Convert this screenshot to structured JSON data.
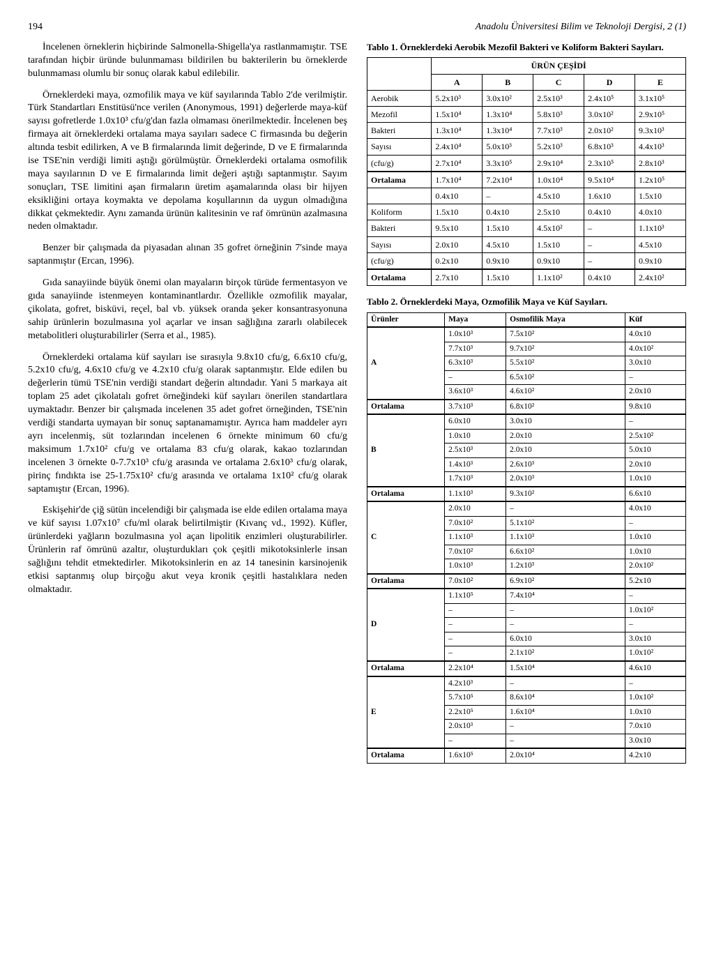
{
  "page_number": "194",
  "journal": "Anadolu Üniversitesi Bilim ve Teknoloji Dergisi, 2 (1)",
  "paragraphs": {
    "p1": "İncelenen örneklerin hiçbirinde Salmonella-Shigella'ya rastlanmamıştır. TSE tarafından hiçbir üründe bulunmaması bildirilen bu bakterilerin bu örneklerde bulunmaması olumlu bir sonuç olarak kabul edilebilir.",
    "p2": "Örneklerdeki maya, ozmofilik maya ve küf sayılarında Tablo 2'de verilmiştir. Türk Standartları Enstitüsü'nce verilen (Anonymous, 1991) değerlerde maya-küf sayısı gofretlerde 1.0x10³ cfu/g'dan fazla olmaması önerilmektedir. İncelenen beş firmaya ait örneklerdeki ortalama maya sayıları sadece C firmasında bu değerin altında tesbit edilirken, A ve B firmalarında limit değerinde, D ve E firmalarında ise TSE'nin verdiği limiti aştığı görülmüştür. Örneklerdeki ortalama osmofilik maya sayılarının D ve E firmalarında limit değeri aştığı saptanmıştır. Sayım sonuçları, TSE limitini aşan firmaların üretim aşamalarında olası bir hijyen eksikliğini ortaya koymakta ve depolama koşullarının da uygun olmadığına dikkat çekmektedir. Aynı zamanda ürünün kalitesinin ve raf ömrünün azalmasına neden olmaktadır.",
    "p3": "Benzer bir çalışmada da piyasadan alınan 35 gofret örneğinin 7'sinde maya saptanmıştır (Ercan, 1996).",
    "p4": "Gıda sanayiinde büyük önemi olan mayaların birçok türüde fermentasyon ve gıda sanayiinde istenmeyen kontaminantlardır. Özellikle ozmofilik mayalar, çikolata, gofret, bisküvi, reçel, bal vb. yüksek oranda şeker konsantrasyonuna sahip ürünlerin bozulmasına yol açarlar ve insan sağlığına zararlı olabilecek metabolitleri oluşturabilirler (Serra et al., 1985).",
    "p5": "Örneklerdeki ortalama küf sayıları ise sırasıyla 9.8x10 cfu/g, 6.6x10 cfu/g, 5.2x10 cfu/g, 4.6x10 cfu/g ve 4.2x10 cfu/g olarak saptanmıştır. Elde edilen bu değerlerin tümü TSE'nin verdiği standart değerin altındadır. Yani 5 markaya ait toplam 25 adet çikolatalı gofret örneğindeki küf sayıları önerilen standartlara uymaktadır. Benzer bir çalışmada incelenen 35 adet gofret örneğinden, TSE'nin verdiği standarta uymayan bir sonuç saptanamamıştır. Ayrıca ham maddeler ayrı ayrı incelenmiş, süt tozlarından incelenen 6 örnekte minimum 60 cfu/g maksimum 1.7x10² cfu/g ve ortalama 83 cfu/g olarak, kakao tozlarından incelenen 3 örnekte 0-7.7x10³ cfu/g arasında ve ortalama 2.6x10³ cfu/g olarak, pirinç fındıkta ise 25-1.75x10² cfu/g arasında ve ortalama 1x10² cfu/g olarak saptamıştır (Ercan, 1996).",
    "p6": "Eskişehir'de çiğ sütün incelendiği bir çalışmada ise elde edilen ortalama maya ve küf sayısı 1.07x10⁷ cfu/ml olarak belirtilmiştir (Kıvanç vd., 1992). Küfler, ürünlerdeki yağların bozulmasına yol açan lipolitik enzimleri oluşturabilirler. Ürünlerin raf ömrünü azaltır, oluşturdukları çok çeşitli mikotoksinlerle insan sağlığını tehdit etmektedirler. Mikotoksinlerin en az 14 tanesinin karsinojenik etkisi saptanmış olup birçoğu akut veya kronik çeşitli hastalıklara neden olmaktadır."
  },
  "table1": {
    "caption_label": "Tablo 1.",
    "caption_text": "Örneklerdeki Aerobik Mezofil Bakteri ve Koliform Bakteri Sayıları.",
    "header_span": "ÜRÜN ÇEŞİDİ",
    "columns": [
      "A",
      "B",
      "C",
      "D",
      "E"
    ],
    "rows": [
      {
        "label": "Aerobik",
        "cells": [
          "5.2x10³",
          "3.0x10²",
          "2.5x10³",
          "2.4x10⁵",
          "3.1x10⁵"
        ]
      },
      {
        "label": "Mezofil",
        "cells": [
          "1.5x10⁴",
          "1.3x10⁴",
          "5.8x10³",
          "3.0x10²",
          "2.9x10⁵"
        ]
      },
      {
        "label": "Bakteri",
        "cells": [
          "1.3x10⁴",
          "1.3x10⁴",
          "7.7x10³",
          "2.0x10²",
          "9.3x10³"
        ]
      },
      {
        "label": "Sayısı",
        "cells": [
          "2.4x10⁴",
          "5.0x10³",
          "5.2x10³",
          "6.8x10³",
          "4.4x10³"
        ]
      },
      {
        "label": "(cfu/g)",
        "cells": [
          "2.7x10⁴",
          "3.3x10⁵",
          "2.9x10⁴",
          "2.3x10⁵",
          "2.8x10³"
        ]
      },
      {
        "label": "Ortalama",
        "cells": [
          "1.7x10⁴",
          "7.2x10⁴",
          "1.0x10⁴",
          "9.5x10⁴",
          "1.2x10⁵"
        ],
        "thick": true
      },
      {
        "label": "",
        "cells": [
          "0.4x10",
          "–",
          "4.5x10",
          "1.6x10",
          "1.5x10"
        ]
      },
      {
        "label": "Koliform",
        "cells": [
          "1.5x10",
          "0.4x10",
          "2.5x10",
          "0.4x10",
          "4.0x10"
        ]
      },
      {
        "label": "Bakteri",
        "cells": [
          "9.5x10",
          "1.5x10",
          "4.5x10²",
          "–",
          "1.1x10³"
        ]
      },
      {
        "label": "Sayısı",
        "cells": [
          "2.0x10",
          "4.5x10",
          "1.5x10",
          "–",
          "4.5x10"
        ]
      },
      {
        "label": "(cfu/g)",
        "cells": [
          "0.2x10",
          "0.9x10",
          "0.9x10",
          "–",
          "0.9x10"
        ]
      },
      {
        "label": "Ortalama",
        "cells": [
          "2.7x10",
          "1.5x10",
          "1.1x10²",
          "0.4x10",
          "2.4x10²"
        ],
        "thick": true
      }
    ]
  },
  "table2": {
    "caption_label": "Tablo 2.",
    "caption_text": "Örneklerdeki Maya, Ozmofilik Maya ve Küf Sayıları.",
    "columns": [
      "Ürünler",
      "Maya",
      "Osmofilik Maya",
      "Küf"
    ],
    "groups": [
      {
        "label": "A",
        "rows": [
          [
            "1.0x10³",
            "7.5x10²",
            "4.0x10"
          ],
          [
            "7.7x10³",
            "9.7x10²",
            "4.0x10²"
          ],
          [
            "6.3x10³",
            "5.5x10²",
            "3.0x10"
          ],
          [
            "–",
            "6.5x10²",
            "–"
          ],
          [
            "3.6x10³",
            "4.6x10²",
            "2.0x10"
          ]
        ],
        "ortalama": [
          "3.7x10³",
          "6.8x10²",
          "9.8x10"
        ]
      },
      {
        "label": "B",
        "rows": [
          [
            "6.0x10",
            "3.0x10",
            "–"
          ],
          [
            "1.0x10",
            "2.0x10",
            "2.5x10²"
          ],
          [
            "2.5x10³",
            "2.0x10",
            "5.0x10"
          ],
          [
            "1.4x10³",
            "2.6x10³",
            "2.0x10"
          ],
          [
            "1.7x10³",
            "2.0x10³",
            "1.0x10"
          ]
        ],
        "ortalama": [
          "1.1x10³",
          "9.3x10²",
          "6.6x10"
        ]
      },
      {
        "label": "C",
        "rows": [
          [
            "2.0x10",
            "–",
            "4.0x10"
          ],
          [
            "7.0x10²",
            "5.1x10²",
            "–"
          ],
          [
            "1.1x10³",
            "1.1x10³",
            "1.0x10"
          ],
          [
            "7.0x10²",
            "6.6x10²",
            "1.0x10"
          ],
          [
            "1.0x10³",
            "1.2x10³",
            "2.0x10²"
          ]
        ],
        "ortalama": [
          "7.0x10²",
          "6.9x10²",
          "5.2x10"
        ]
      },
      {
        "label": "D",
        "rows": [
          [
            "1.1x10⁵",
            "7.4x10⁴",
            "–"
          ],
          [
            "–",
            "–",
            "1.0x10²"
          ],
          [
            "–",
            "–",
            "–"
          ],
          [
            "–",
            "6.0x10",
            "3.0x10"
          ],
          [
            "–",
            "2.1x10²",
            "1.0x10²"
          ]
        ],
        "ortalama": [
          "2.2x10⁴",
          "1.5x10⁴",
          "4.6x10"
        ]
      },
      {
        "label": "E",
        "rows": [
          [
            "4.2x10³",
            "–",
            "–"
          ],
          [
            "5.7x10⁵",
            "8.6x10⁴",
            "1.0x10²"
          ],
          [
            "2.2x10⁵",
            "1.6x10⁴",
            "1.0x10"
          ],
          [
            "2.0x10³",
            "–",
            "7.0x10"
          ],
          [
            "–",
            "–",
            "3.0x10"
          ]
        ],
        "ortalama": [
          "1.6x10⁵",
          "2.0x10⁴",
          "4.2x10"
        ]
      }
    ],
    "ortalama_label": "Ortalama"
  }
}
